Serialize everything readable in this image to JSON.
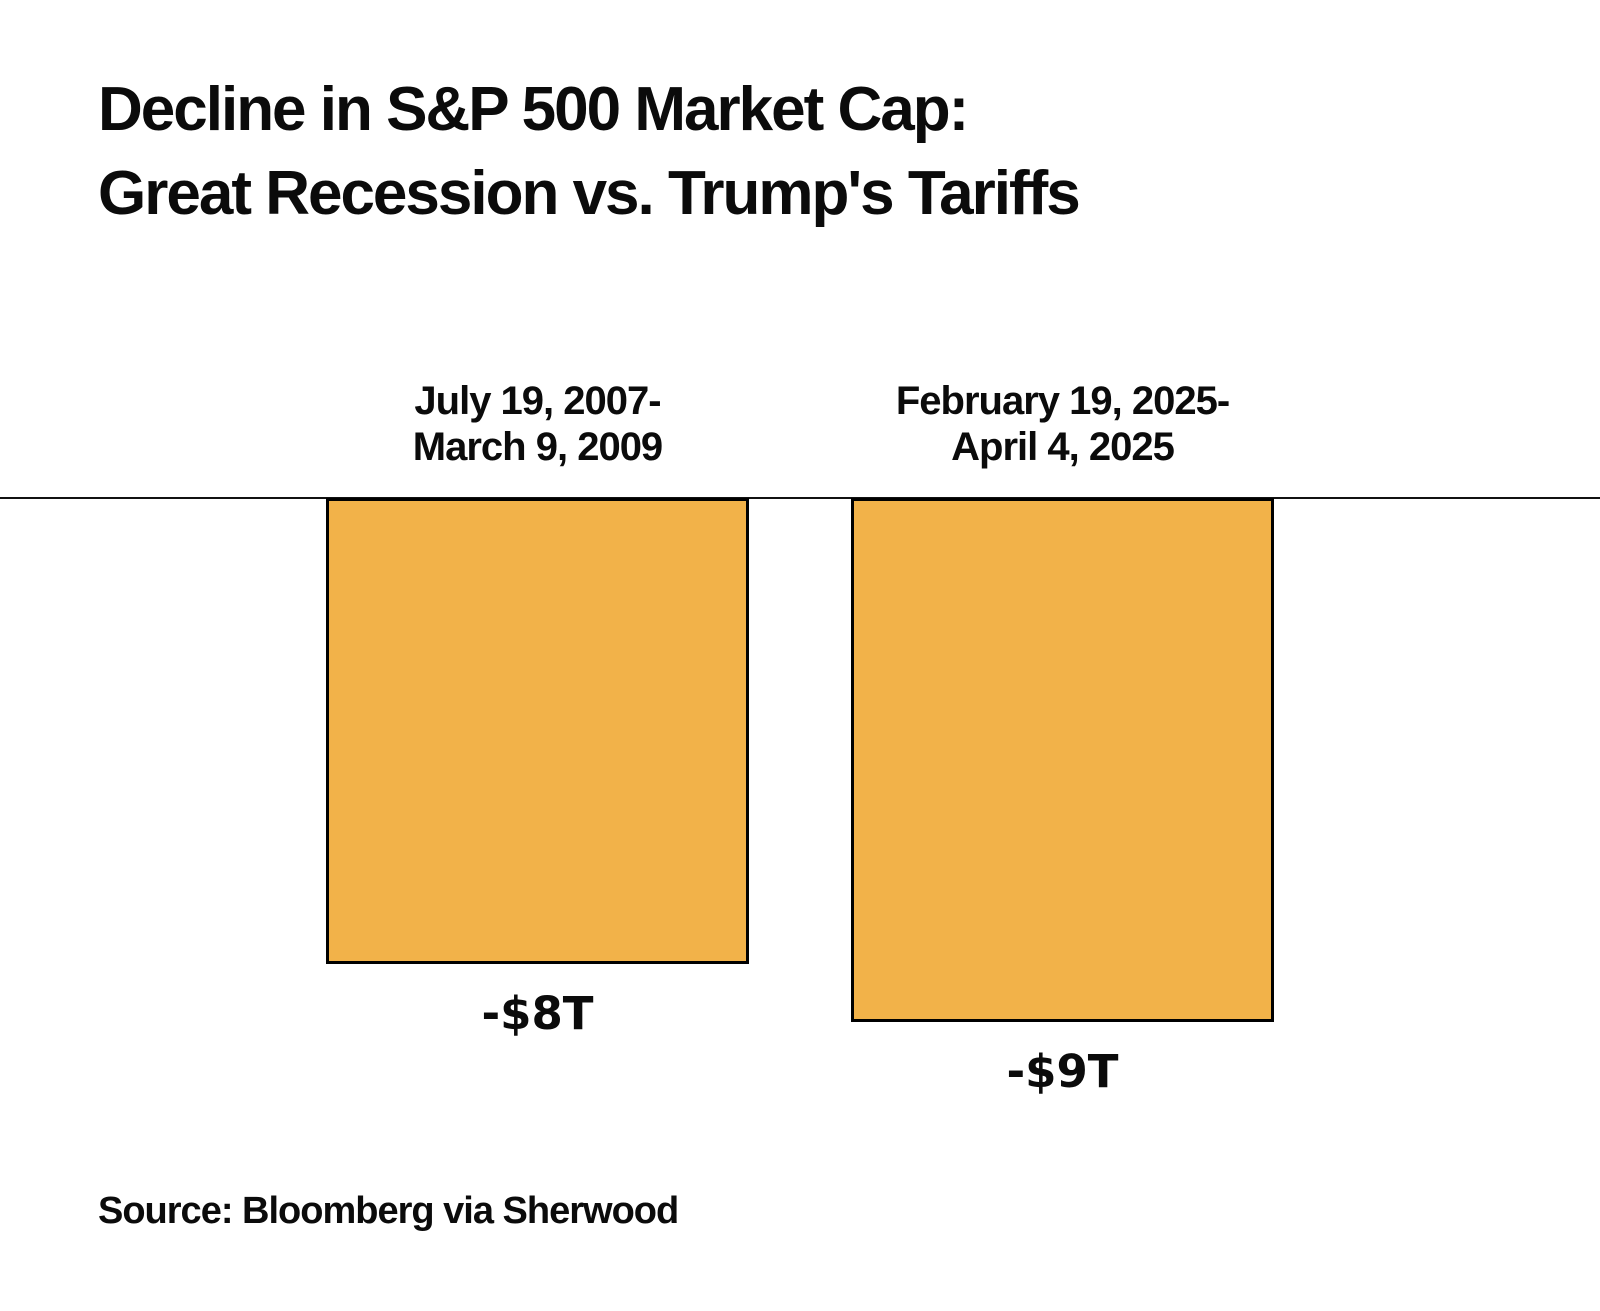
{
  "title": {
    "line1": "Decline in S&P 500 Market Cap:",
    "line2": "Great Recession vs. Trump's Tariffs"
  },
  "source": {
    "text": "Source: Bloomberg via Sherwood"
  },
  "chart_data": {
    "type": "bar",
    "title": "Decline in S&P 500 Market Cap: Great Recession vs. Trump's Tariffs",
    "categories": [
      {
        "line1": "July 19, 2007-",
        "line2": "March 9, 2009"
      },
      {
        "line1": "February 19, 2025-",
        "line2": "April 4, 2025"
      }
    ],
    "values": [
      -8,
      -9
    ],
    "value_labels": [
      "-$8T",
      "-$9T"
    ],
    "unit": "trillion USD",
    "ylim": [
      -9,
      0
    ],
    "grid": false,
    "legend_position": "none",
    "orientation": "vertical-below-baseline",
    "bar_color": "#F2B249",
    "bar_border_color": "#000000",
    "baseline_color": "#111111",
    "text_color": "#0b0b0b",
    "background_color": "#ffffff"
  }
}
